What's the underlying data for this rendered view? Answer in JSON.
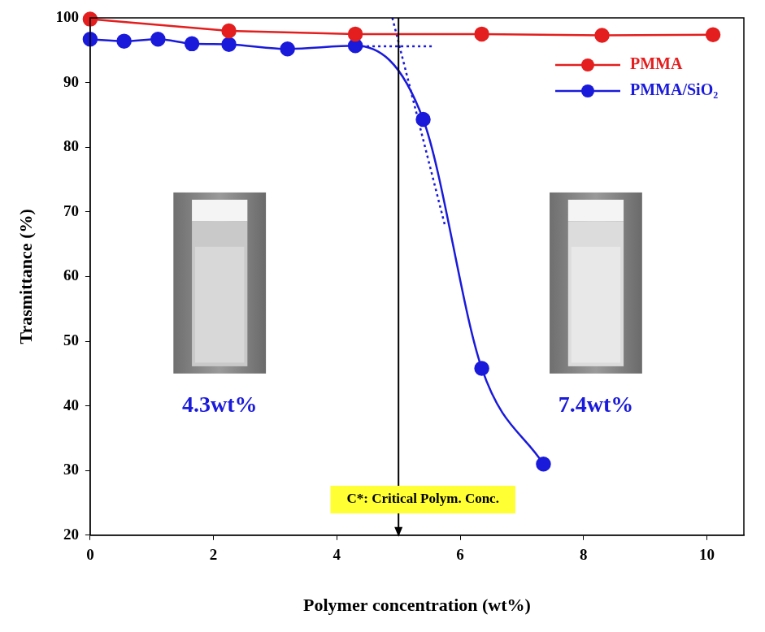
{
  "chart_data": {
    "type": "line",
    "x_label": "Polymer concentration (wt%)",
    "y_label": "Trasmittance (%)",
    "xlim": [
      0,
      10.6
    ],
    "xticks": [
      0,
      2,
      4,
      6,
      8,
      10
    ],
    "ylim": [
      20,
      100
    ],
    "yticks": [
      20,
      30,
      40,
      50,
      60,
      70,
      80,
      90,
      100
    ],
    "grid": false,
    "legend": "top-right",
    "series": [
      {
        "name": "PMMA",
        "color": "#e41e1e",
        "marker": "circle",
        "line_style": "solid",
        "x": [
          0,
          2.25,
          4.3,
          6.35,
          8.3,
          10.1
        ],
        "values": [
          99.8,
          98,
          97.5,
          97.5,
          97.3,
          97.4
        ]
      },
      {
        "name": "PMMA/SiO₂",
        "color": "#1a1adb",
        "marker": "circle",
        "line_style": "smooth",
        "x": [
          0,
          0.55,
          1.1,
          1.65,
          2.25,
          3.2,
          4.3,
          5.4,
          6.35,
          7.35
        ],
        "values": [
          96.7,
          96.4,
          96.7,
          96,
          95.9,
          95.2,
          95.7,
          84.3,
          45.8,
          31
        ]
      }
    ],
    "guide_lines": [
      {
        "color": "#1a1adb",
        "line_style": "dotted",
        "x": [
          4.3,
          5.55
        ],
        "y": [
          95.6,
          95.6
        ]
      },
      {
        "color": "#1a1adb",
        "line_style": "dotted",
        "x": [
          4.9,
          5.75
        ],
        "y": [
          100,
          68
        ]
      }
    ],
    "critical_line": {
      "x": 5,
      "label": "C*: Critical Polym. Conc.",
      "color": "#000000"
    },
    "annotations": [
      {
        "text": "4.3wt%",
        "color": "#1a1adb"
      },
      {
        "text": "7.4wt%",
        "color": "#1a1adb"
      }
    ]
  }
}
